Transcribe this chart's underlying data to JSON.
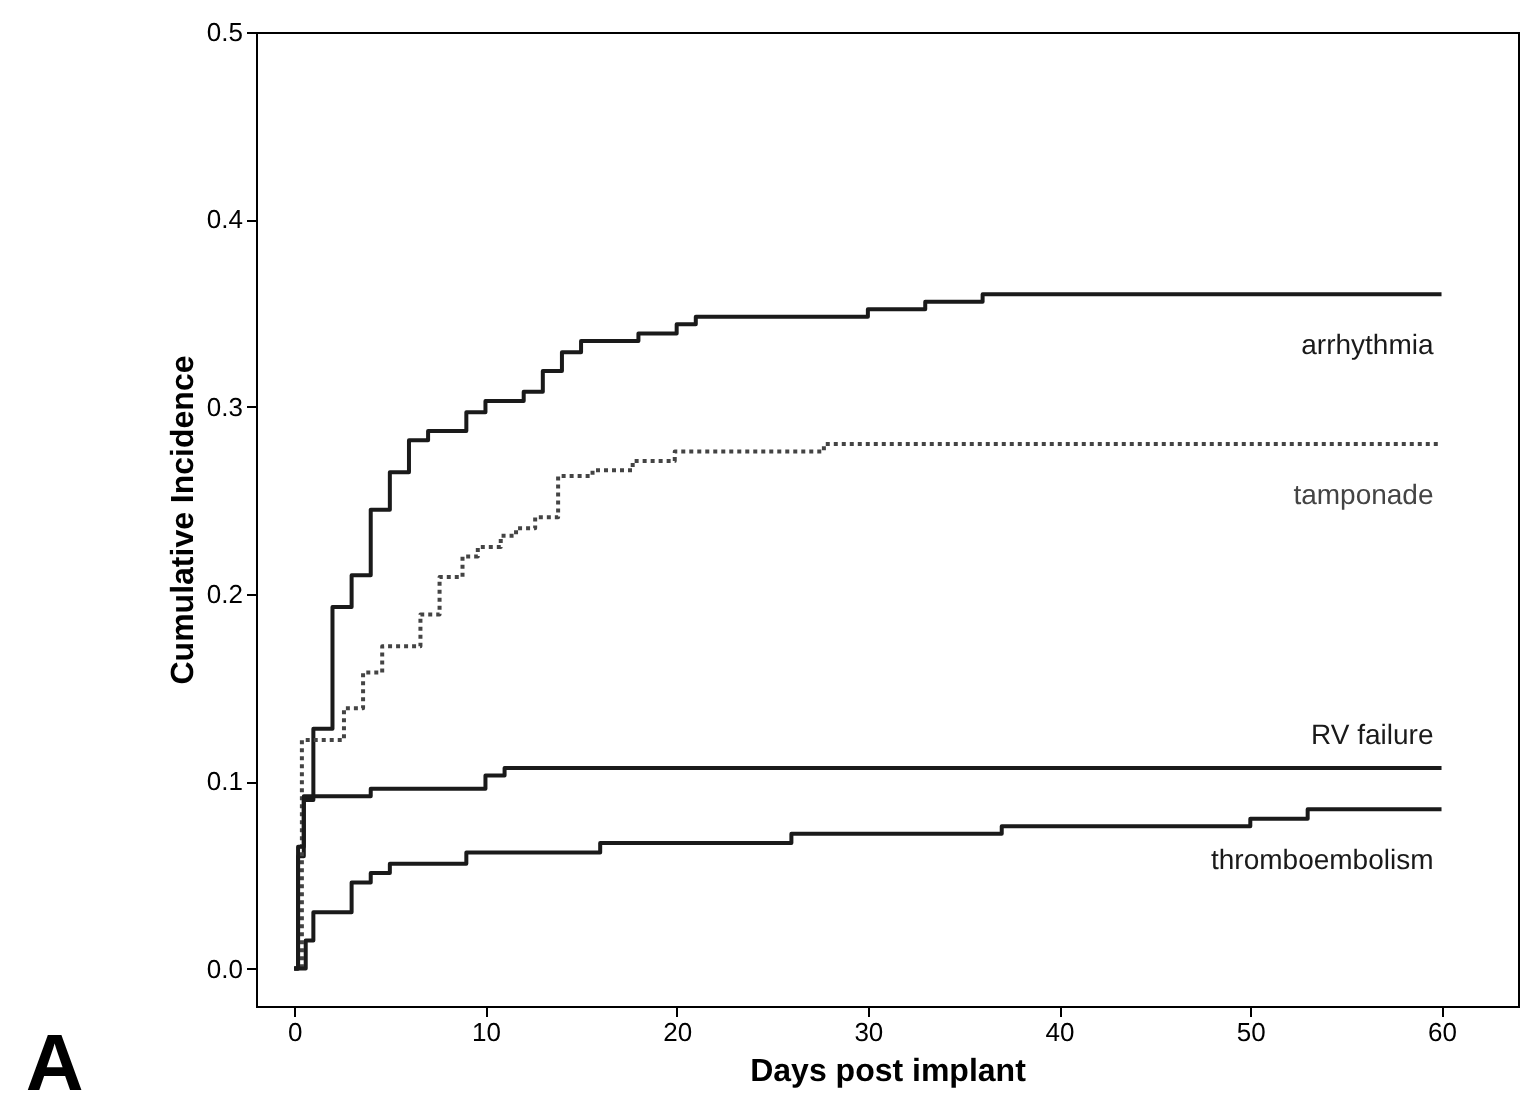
{
  "chart_data": {
    "type": "step",
    "xlabel": "Days post implant",
    "ylabel": "Cumulative Incidence",
    "xlim": [
      -2,
      64
    ],
    "xticks": [
      0,
      10,
      20,
      30,
      40,
      50,
      60
    ],
    "ylim": [
      -0.02,
      0.5
    ],
    "yticks": [
      {
        "value": 0,
        "label": "0.0"
      },
      {
        "value": 0.1,
        "label": "0.1"
      },
      {
        "value": 0.2,
        "label": "0.2"
      },
      {
        "value": 0.3,
        "label": "0.3"
      },
      {
        "value": 0.4,
        "label": "0.4"
      },
      {
        "value": 0.5,
        "label": "0.5"
      }
    ],
    "series": [
      {
        "name": "arrhythmia",
        "color": "#1a1a1a",
        "line_style": "solid",
        "x": [
          0,
          0.2,
          0.5,
          1,
          2,
          3,
          4,
          5,
          6,
          7,
          9,
          10,
          12,
          13,
          14,
          15,
          18,
          20,
          21,
          30,
          33,
          36,
          60
        ],
        "values": [
          0,
          0.06,
          0.09,
          0.128,
          0.193,
          0.21,
          0.245,
          0.265,
          0.282,
          0.287,
          0.297,
          0.303,
          0.308,
          0.319,
          0.329,
          0.335,
          0.339,
          0.344,
          0.348,
          0.352,
          0.356,
          0.36,
          0.36
        ]
      },
      {
        "name": "tamponade",
        "color": "#444444",
        "line_style": "dotted",
        "x": [
          0,
          0.4,
          2.6,
          3.6,
          4.6,
          6.6,
          7.6,
          8.8,
          9.6,
          10.8,
          11.6,
          12.6,
          13.8,
          15.6,
          17.7,
          19.9,
          27.7,
          60
        ],
        "values": [
          0,
          0.122,
          0.139,
          0.158,
          0.172,
          0.189,
          0.209,
          0.22,
          0.225,
          0.231,
          0.235,
          0.241,
          0.263,
          0.266,
          0.271,
          0.276,
          0.28,
          0.28
        ]
      },
      {
        "name": "RV failure",
        "color": "#1a1a1a",
        "line_style": "solid",
        "x": [
          0,
          0.2,
          0.5,
          4,
          10,
          11,
          60
        ],
        "values": [
          0,
          0.065,
          0.092,
          0.096,
          0.103,
          0.107,
          0.107
        ]
      },
      {
        "name": "thromboembolism",
        "color": "#1a1a1a",
        "line_style": "solid",
        "x": [
          0,
          0.6,
          1,
          3,
          4,
          5,
          9,
          16,
          26,
          37,
          50,
          53,
          60
        ],
        "values": [
          0,
          0.015,
          0.03,
          0.046,
          0.051,
          0.056,
          0.062,
          0.067,
          0.072,
          0.076,
          0.08,
          0.085,
          0.085
        ]
      }
    ],
    "annotations": [
      "A"
    ]
  }
}
